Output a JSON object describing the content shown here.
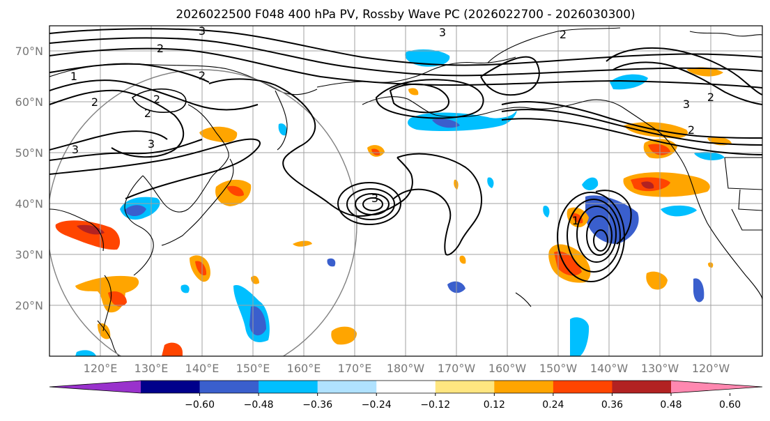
{
  "figure": {
    "title": "2026022500 F048 400 hPa PV, Rossby Wave PC (2026022700 - 2026030300)"
  },
  "axes": {
    "lat_labels": [
      "70°N",
      "60°N",
      "50°N",
      "40°N",
      "30°N",
      "20°N"
    ],
    "lon_labels": [
      "120°E",
      "130°E",
      "140°E",
      "150°E",
      "160°E",
      "170°E",
      "180°W",
      "170°W",
      "160°W",
      "150°W",
      "140°W",
      "130°W",
      "120°W"
    ]
  },
  "colorbar": {
    "tick_labels": [
      "−0.60",
      "−0.48",
      "−0.36",
      "−0.24",
      "−0.12",
      "0.12",
      "0.24",
      "0.36",
      "0.48",
      "0.60"
    ],
    "colors": [
      "#9932cc",
      "#00008b",
      "#3a5fcd",
      "#00bfff",
      "#b0e2ff",
      "#ffffff",
      "#ffe680",
      "#ffa500",
      "#ff4500",
      "#b22222",
      "#ff88b0"
    ]
  },
  "contour_labels": [
    "1",
    "2",
    "2",
    "2",
    "3",
    "3",
    "3",
    "2",
    "2",
    "2",
    "3",
    "2",
    "3",
    "3",
    "1",
    "2"
  ]
}
